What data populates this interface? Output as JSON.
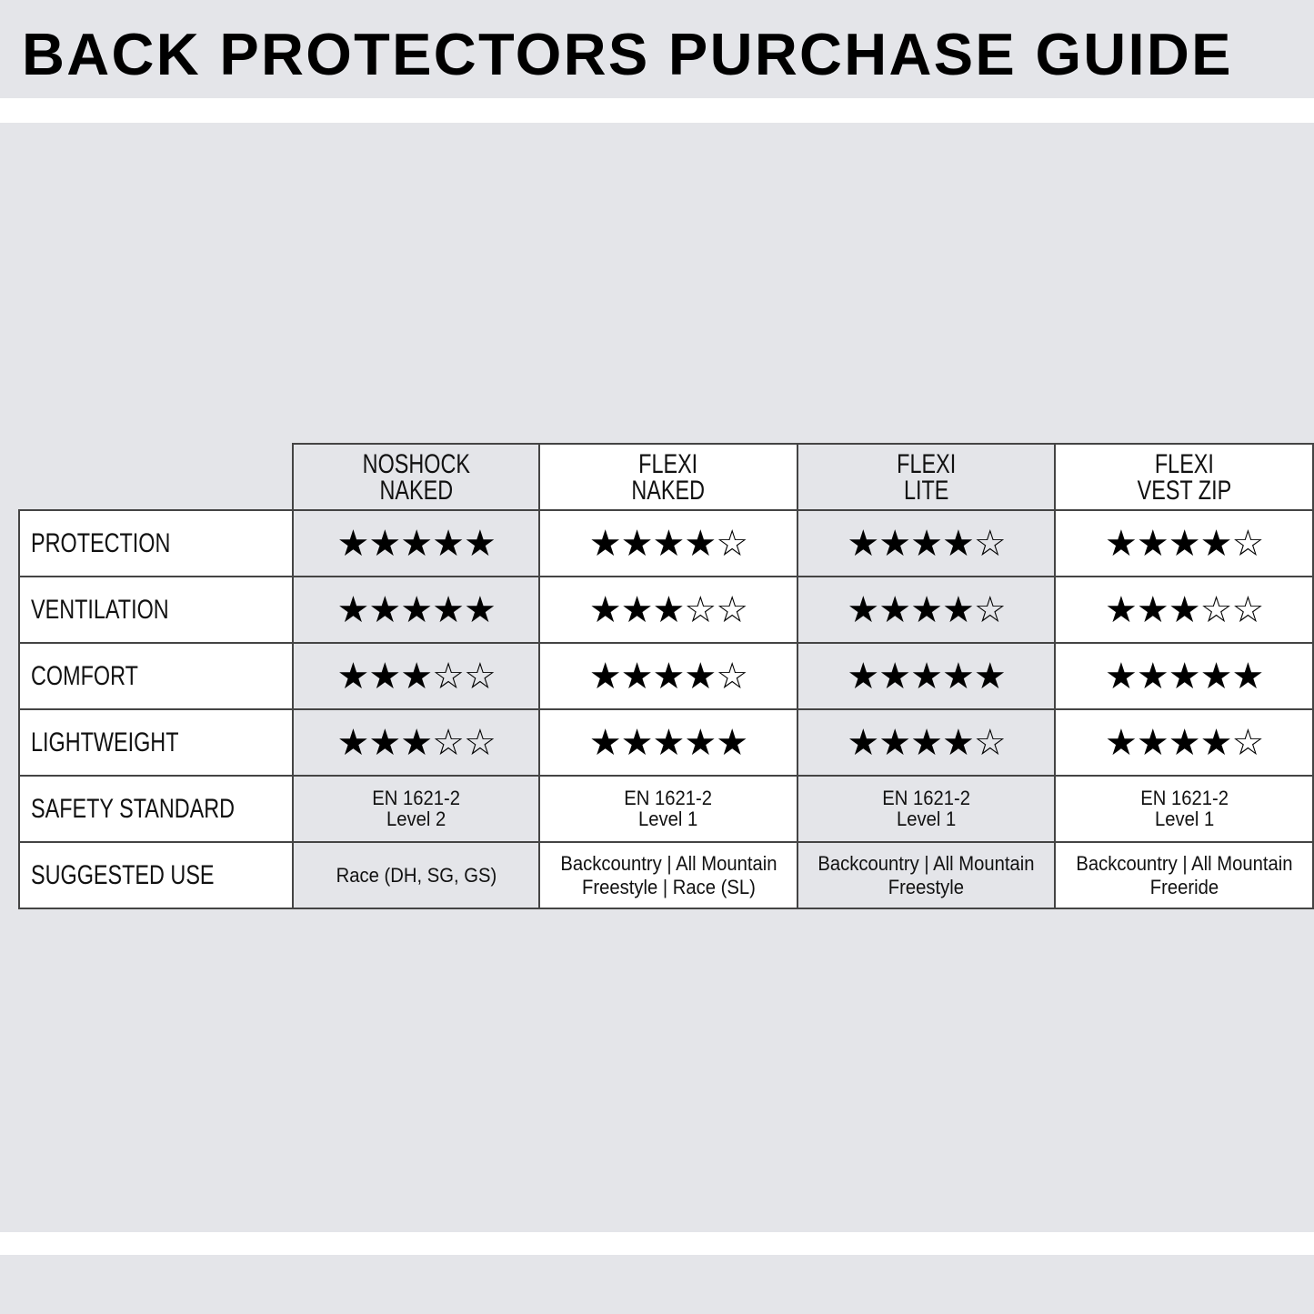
{
  "title": "BACK PROTECTORS PURCHASE GUIDE",
  "colors": {
    "background_gray": "#e4e5e9",
    "white": "#ffffff",
    "border": "#444444",
    "text": "#000000"
  },
  "products": [
    {
      "line1": "NOSHOCK",
      "line2": "NAKED",
      "shade": "gray"
    },
    {
      "line1": "FLEXI",
      "line2": "NAKED",
      "shade": "white"
    },
    {
      "line1": "FLEXI",
      "line2": "LITE",
      "shade": "gray"
    },
    {
      "line1": "FLEXI",
      "line2": "VEST ZIP",
      "shade": "white"
    }
  ],
  "rating_max": 5,
  "star_icons": {
    "filled": "star-filled-icon",
    "empty": "star-outline-icon"
  },
  "ratings": [
    {
      "label": "PROTECTION",
      "values": [
        5,
        4,
        4,
        4
      ]
    },
    {
      "label": "VENTILATION",
      "values": [
        5,
        3,
        4,
        3
      ]
    },
    {
      "label": "COMFORT",
      "values": [
        3,
        4,
        5,
        5
      ]
    },
    {
      "label": "LIGHTWEIGHT",
      "values": [
        3,
        5,
        4,
        4
      ]
    }
  ],
  "safety": {
    "label": "SAFETY STANDARD",
    "values": [
      {
        "line1": "EN 1621-2",
        "line2": "Level 2"
      },
      {
        "line1": "EN 1621-2",
        "line2": "Level 1"
      },
      {
        "line1": "EN 1621-2",
        "line2": "Level 1"
      },
      {
        "line1": "EN 1621-2",
        "line2": "Level 1"
      }
    ]
  },
  "use": {
    "label": "SUGGESTED USE",
    "values": [
      {
        "line1": "Race (DH, SG, GS)",
        "line2": ""
      },
      {
        "line1": "Backcountry | All Mountain",
        "line2": "Freestyle | Race (SL)"
      },
      {
        "line1": "Backcountry | All Mountain",
        "line2": "Freestyle"
      },
      {
        "line1": "Backcountry | All Mountain",
        "line2": "Freeride"
      }
    ]
  }
}
